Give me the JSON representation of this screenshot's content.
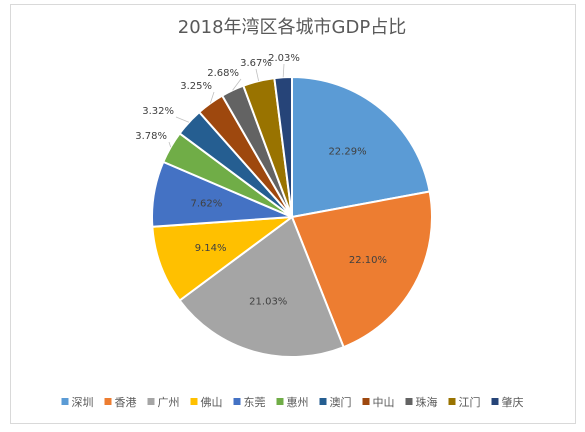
{
  "chart_data": {
    "type": "pie",
    "title": "2018年湾区各城市GDP占比",
    "categories": [
      "深圳",
      "香港",
      "广州",
      "佛山",
      "东莞",
      "惠州",
      "澳门",
      "中山",
      "珠海",
      "江门",
      "肇庆"
    ],
    "values": [
      22.29,
      22.1,
      21.03,
      9.14,
      7.62,
      3.78,
      3.32,
      3.25,
      2.68,
      3.67,
      2.03
    ],
    "labels": [
      "22.29%",
      "22.10%",
      "21.03%",
      "9.14%",
      "7.62%",
      "3.78%",
      "3.32%",
      "3.25%",
      "2.68%",
      "3.67%",
      "2.03%"
    ],
    "colors": [
      "#5b9bd5",
      "#ed7d31",
      "#a5a5a5",
      "#ffc000",
      "#4472c4",
      "#70ad47",
      "#255e91",
      "#9e480e",
      "#636363",
      "#997300",
      "#264478"
    ],
    "legend_position": "bottom"
  }
}
